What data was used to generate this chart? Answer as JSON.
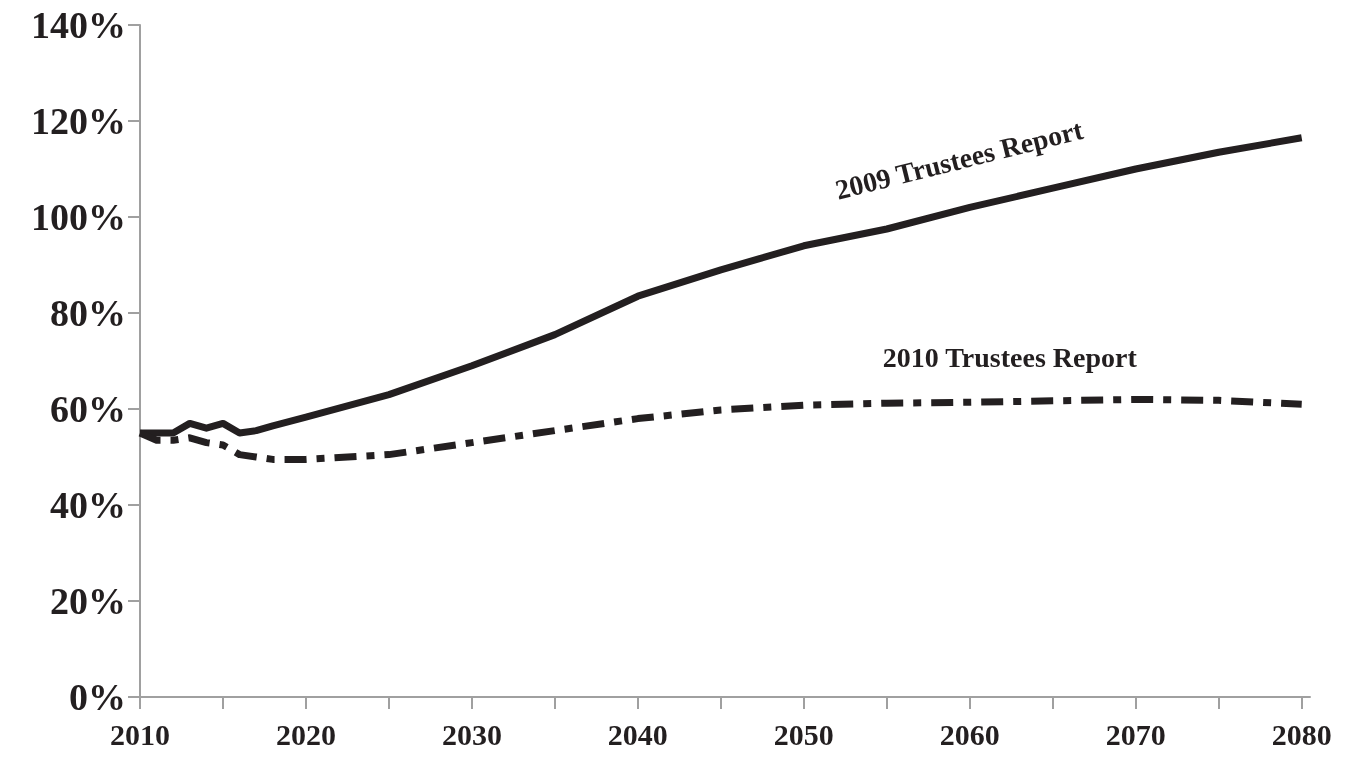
{
  "chart_data": {
    "type": "line",
    "x": [
      2010,
      2011,
      2012,
      2013,
      2014,
      2015,
      2016,
      2017,
      2018,
      2020,
      2025,
      2030,
      2035,
      2040,
      2045,
      2050,
      2055,
      2060,
      2065,
      2070,
      2075,
      2080
    ],
    "series": [
      {
        "name": "2009 Trustees Report",
        "color": "#231f20",
        "line_style": "solid",
        "values": [
          55,
          55,
          55,
          57,
          56,
          57,
          55,
          55.5,
          56.5,
          58.3,
          63,
          69,
          75.5,
          83.5,
          89,
          94,
          97.5,
          102,
          106,
          110,
          113.5,
          116.5
        ]
      },
      {
        "name": "2010 Trustees Report",
        "color": "#231f20",
        "line_style": "dashed",
        "values": [
          55,
          53.5,
          53.5,
          54,
          53,
          52.5,
          50.5,
          50,
          49.5,
          49.5,
          50.5,
          53,
          55.5,
          58,
          59.8,
          60.8,
          61.2,
          61.4,
          61.7,
          62,
          61.8,
          61
        ]
      }
    ],
    "xlim": [
      2010,
      2080.5
    ],
    "xticks": [
      2010,
      {
        "value": 2015,
        "label": null
      },
      2020,
      {
        "value": 2025,
        "label": null
      },
      2030,
      {
        "value": 2035,
        "label": null
      },
      2040,
      {
        "value": 2045,
        "label": null
      },
      2050,
      {
        "value": 2055,
        "label": null
      },
      2060,
      {
        "value": 2065,
        "label": null
      },
      2070,
      {
        "value": 2075,
        "label": null
      },
      2080
    ],
    "ylim": [
      0,
      140
    ],
    "yticks": [
      {
        "value": 0,
        "label": "0%"
      },
      {
        "value": 20,
        "label": "20%"
      },
      {
        "value": 40,
        "label": "40%"
      },
      {
        "value": 60,
        "label": "60%"
      },
      {
        "value": 80,
        "label": "80%"
      },
      {
        "value": 100,
        "label": "100%"
      },
      {
        "value": 120,
        "label": "120%"
      },
      {
        "value": 140,
        "label": "140%"
      }
    ],
    "grid": false,
    "legend": false,
    "marker": "none"
  }
}
